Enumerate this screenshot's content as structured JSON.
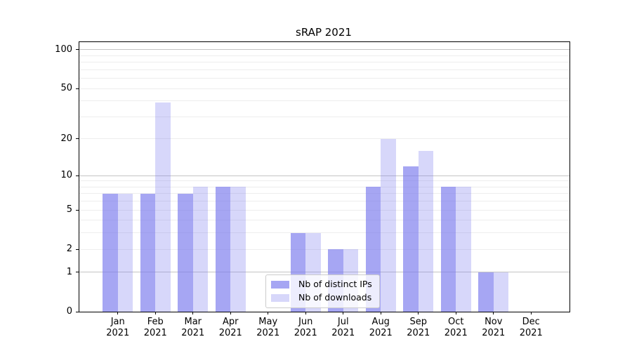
{
  "chart_data": {
    "type": "bar",
    "title": "sRAP 2021",
    "categories": [
      "Jan",
      "Feb",
      "Mar",
      "Apr",
      "May",
      "Jun",
      "Jul",
      "Aug",
      "Sep",
      "Oct",
      "Nov",
      "Dec"
    ],
    "category_year_label": "2021",
    "series": [
      {
        "key": "distinct-ips",
        "name": "Nb of distinct IPs",
        "color": "rgba(124,124,237,0.68)",
        "values": [
          7,
          7,
          7,
          8,
          0,
          3,
          2,
          8,
          12,
          8,
          1,
          0
        ]
      },
      {
        "key": "downloads",
        "name": "Nb of downloads",
        "color": "rgba(124,124,237,0.30)",
        "values": [
          7,
          39,
          8,
          8,
          0,
          3,
          2,
          20,
          16,
          8,
          1,
          0
        ]
      }
    ],
    "y_scale": "log10(1+v)",
    "ylim": [
      0,
      114.7
    ],
    "y_ticks": [
      0,
      1,
      2,
      5,
      10,
      20,
      50,
      100
    ],
    "y_tick_labels": [
      "0",
      "1",
      "2",
      "5",
      "10",
      "20",
      "50",
      "100"
    ],
    "gridlines": {
      "minor": [
        2,
        3,
        4,
        5,
        6,
        7,
        8,
        9,
        20,
        30,
        40,
        50,
        60,
        70,
        80,
        90
      ],
      "major": [
        1,
        10,
        100
      ]
    },
    "grid": "horizontal",
    "legend_position": "lower-center-inside"
  },
  "legend": {
    "items": [
      {
        "label": "Nb of distinct IPs"
      },
      {
        "label": "Nb of downloads"
      }
    ]
  }
}
